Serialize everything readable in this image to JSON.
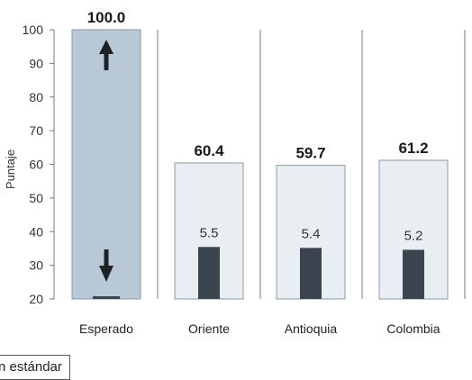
{
  "chart_data": {
    "type": "bar",
    "ylabel": "Puntaje",
    "ylim": [
      20,
      100
    ],
    "yticks": [
      20,
      30,
      40,
      50,
      60,
      70,
      80,
      90,
      100
    ],
    "categories": [
      "Esperado",
      "Oriente",
      "Antioquia",
      "Colombia"
    ],
    "series": [
      {
        "name": "",
        "values": [
          100.0,
          60.4,
          59.7,
          61.2
        ],
        "labels": [
          "100.0",
          "60.4",
          "59.7",
          "61.2"
        ]
      },
      {
        "name": "desviación estándar",
        "values": [
          null,
          5.5,
          5.4,
          5.2
        ],
        "labels": [
          "",
          "5.5",
          "5.4",
          "5.2"
        ]
      }
    ],
    "grid": false,
    "legend": "bottom-left"
  },
  "colors": {
    "expected_bar": "#b8c8d6",
    "main_bar": "#e9eef3",
    "bar_outline": "#8c9aa6",
    "sd_bar": "#3a4550",
    "axis": "#7a7a7a",
    "arrow": "#1e2226"
  },
  "legend": {
    "label": "n estándar"
  }
}
